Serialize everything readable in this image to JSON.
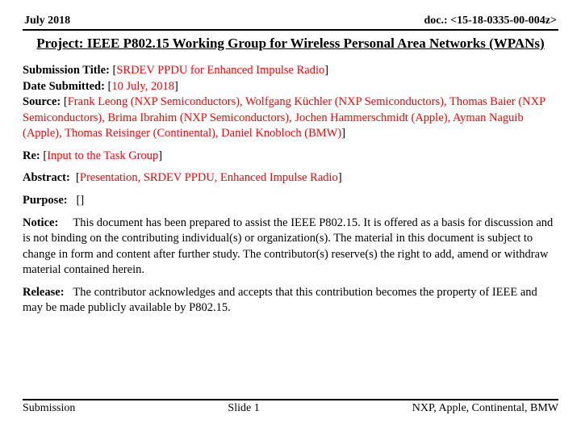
{
  "header": {
    "date": "July 2018",
    "doc": "doc.: <15-18-0335-00-004z>"
  },
  "title": "Project: IEEE P802.15 Working Group for Wireless Personal Area Networks (WPANs)",
  "fields": {
    "submission_title_label": "Submission Title:",
    "submission_title_value": "SRDEV PPDU for Enhanced Impulse Radio",
    "date_submitted_label": "Date Submitted:",
    "date_submitted_value": "10 July, 2018",
    "source_label": "Source:",
    "source_value": "Frank Leong (NXP Semiconductors), Wolfgang Küchler (NXP Semiconductors), Thomas Baier (NXP Semiconductors), Brima Ibrahim (NXP Semiconductors), Jochen Hammerschmidt (Apple), Ayman Naguib (Apple), Thomas Reisinger (Continental), Daniel Knobloch (BMW)",
    "re_label": "Re:",
    "re_value": "Input to the Task Group",
    "abstract_label": "Abstract:",
    "abstract_value": "Presentation, SRDEV PPDU, Enhanced Impulse Radio",
    "purpose_label": "Purpose:",
    "purpose_value": "",
    "notice_label": "Notice:",
    "notice_value": "This document has been prepared to assist the IEEE P802.15.  It is offered as a basis for discussion and is not binding on the contributing individual(s) or organization(s). The material in this document is subject to change in form and content after further study. The contributor(s) reserve(s) the right to add, amend or withdraw material contained herein.",
    "release_label": "Release:",
    "release_value": "The contributor acknowledges and accepts that this contribution becomes the property of IEEE and may be made publicly available by P802.15."
  },
  "footer": {
    "left": "Submission",
    "center": "Slide 1",
    "right": "NXP, Apple, Continental, BMW"
  }
}
